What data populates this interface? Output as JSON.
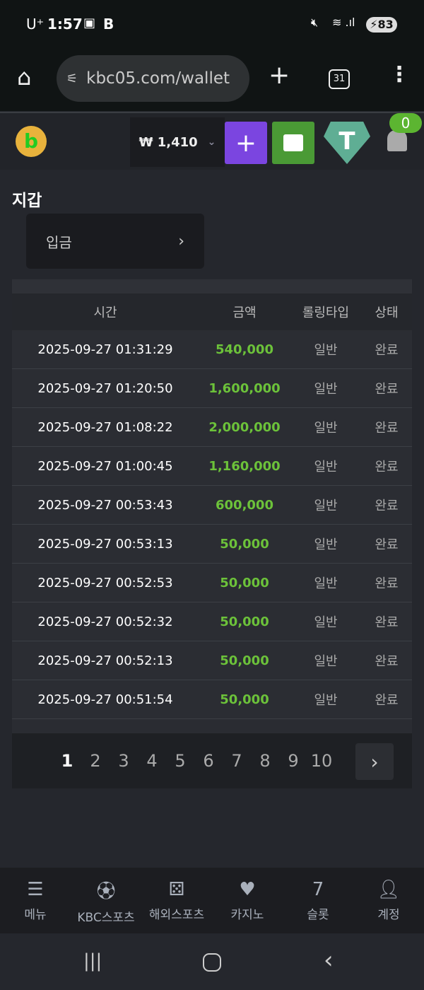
{
  "status": {
    "carrier": "U⁺",
    "time": "1:57",
    "battery": "83"
  },
  "browser": {
    "url": "kbc05.com/wallet",
    "tabs_count": "31"
  },
  "header": {
    "balance": "₩ 1,410",
    "notification_count": "0"
  },
  "page": {
    "title": "지갑",
    "deposit_label": "입금"
  },
  "table": {
    "headers": [
      "시간",
      "금액",
      "롤링타입",
      "상태"
    ],
    "rows": [
      [
        "2025-09-27 01:31:29",
        "540,000",
        "일반",
        "완료"
      ],
      [
        "2025-09-27 01:20:50",
        "1,600,000",
        "일반",
        "완료"
      ],
      [
        "2025-09-27 01:08:22",
        "2,000,000",
        "일반",
        "완료"
      ],
      [
        "2025-09-27 01:00:45",
        "1,160,000",
        "일반",
        "완료"
      ],
      [
        "2025-09-27 00:53:43",
        "600,000",
        "일반",
        "완료"
      ],
      [
        "2025-09-27 00:53:13",
        "50,000",
        "일반",
        "완료"
      ],
      [
        "2025-09-27 00:52:53",
        "50,000",
        "일반",
        "완료"
      ],
      [
        "2025-09-27 00:52:32",
        "50,000",
        "일반",
        "완료"
      ],
      [
        "2025-09-27 00:52:13",
        "50,000",
        "일반",
        "완료"
      ],
      [
        "2025-09-27 00:51:54",
        "50,000",
        "일반",
        "완료"
      ]
    ]
  },
  "pagination": {
    "pages": [
      "1",
      "2",
      "3",
      "4",
      "5",
      "6",
      "7",
      "8",
      "9",
      "10"
    ],
    "current": "1"
  },
  "bottom_nav": [
    {
      "label": "메뉴",
      "icon": "menu-search-icon"
    },
    {
      "label": "KBC스포츠",
      "icon": "soccer-ball-icon"
    },
    {
      "label": "해외스포츠",
      "icon": "dice-icon"
    },
    {
      "label": "카지노",
      "icon": "cards-icon"
    },
    {
      "label": "슬롯",
      "icon": "slot-icon"
    },
    {
      "label": "계정",
      "icon": "account-icon"
    }
  ],
  "colors": {
    "amount": "#6cc23a",
    "plus_button": "#7b45e0",
    "safe_button": "#4a9a35",
    "tether": "#5fae94",
    "badge": "#5cb531"
  }
}
